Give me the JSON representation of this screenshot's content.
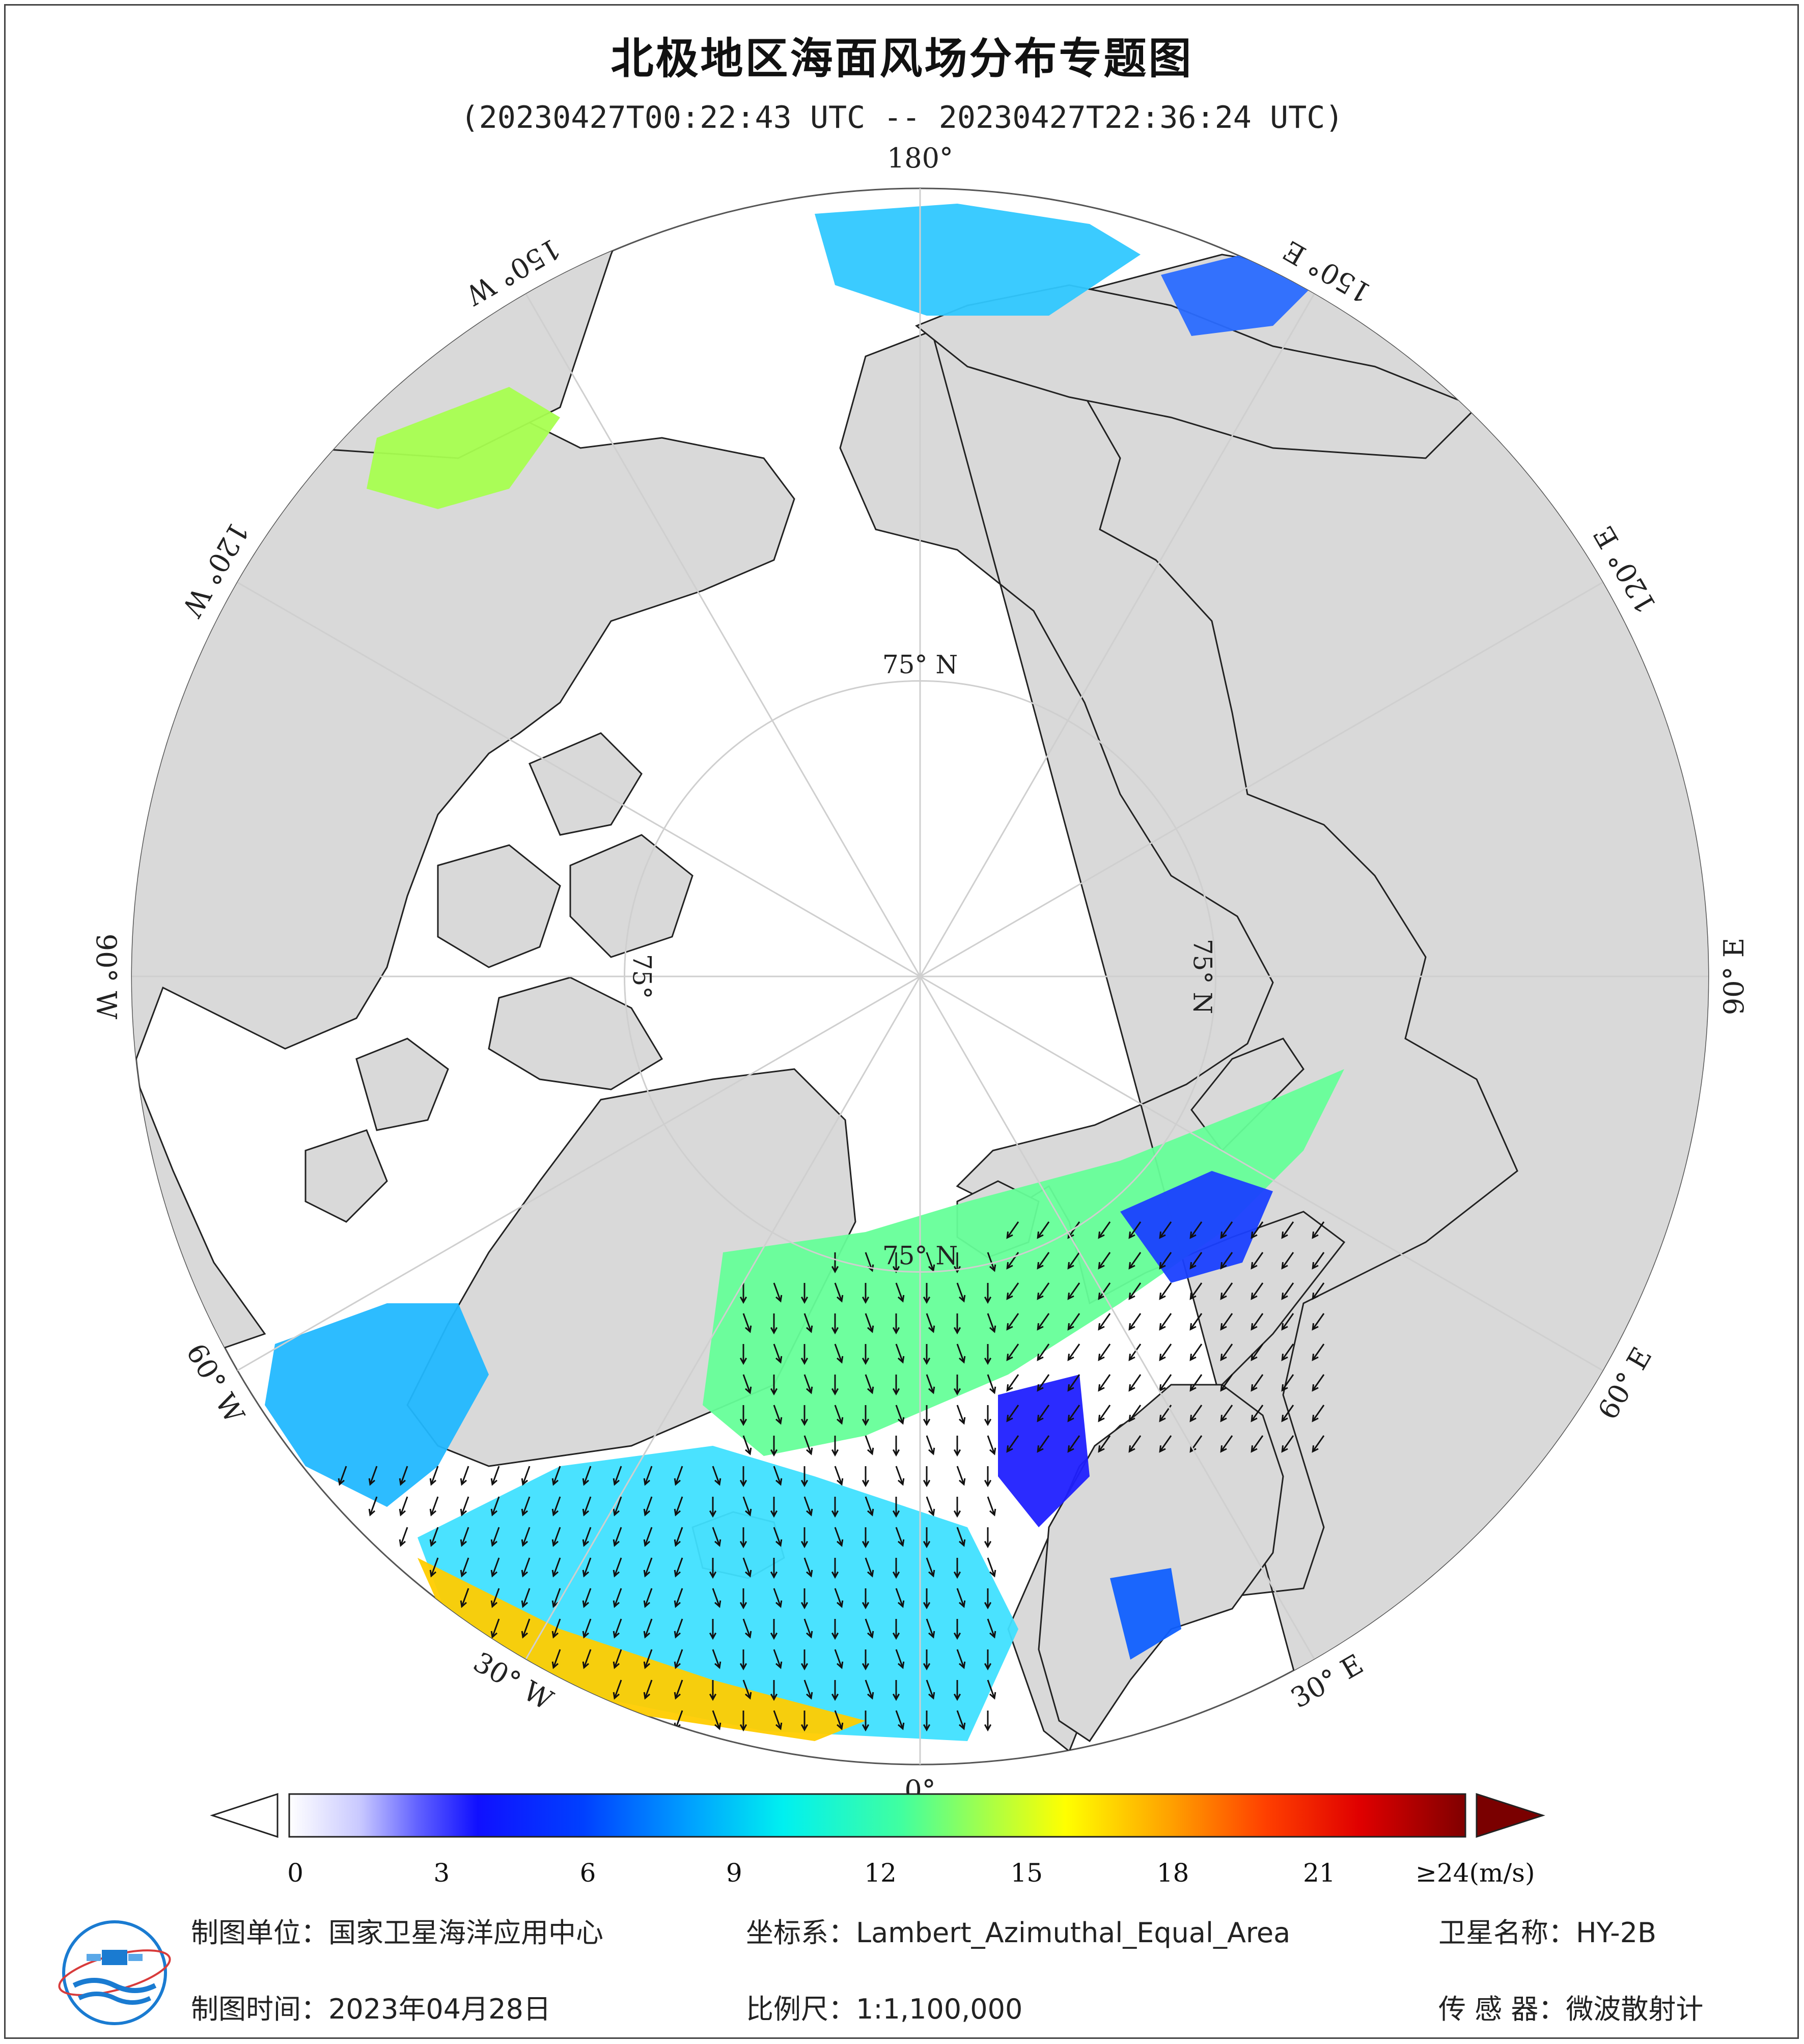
{
  "header": {
    "title": "北极地区海面风场分布专题图",
    "time_range": "(20230427T00:22:43 UTC -- 20230427T22:36:24 UTC)"
  },
  "map": {
    "projection_center": "North Pole",
    "longitude_labels": [
      {
        "lon": 180,
        "text": "180°"
      },
      {
        "lon": -150,
        "text": "150° W"
      },
      {
        "lon": -120,
        "text": "120° W"
      },
      {
        "lon": -90,
        "text": "90° W"
      },
      {
        "lon": -60,
        "text": "60° W"
      },
      {
        "lon": -30,
        "text": "30° W"
      },
      {
        "lon": 0,
        "text": "0°"
      },
      {
        "lon": 30,
        "text": "30° E"
      },
      {
        "lon": 60,
        "text": "60° E"
      },
      {
        "lon": 90,
        "text": "90° E"
      },
      {
        "lon": 120,
        "text": "120° E"
      },
      {
        "lon": 150,
        "text": "150° E"
      }
    ],
    "latitude_labels": [
      {
        "lat": 75,
        "lon": 180,
        "text": "75° N"
      },
      {
        "lat": 75,
        "lon": 90,
        "text": "75° N"
      },
      {
        "lat": 75,
        "lon": 0,
        "text": "75° N"
      },
      {
        "lat": 75,
        "lon": -90,
        "text": "75°"
      }
    ],
    "colors": {
      "ocean_ice": "#ffffff",
      "land": "#d9d9d9",
      "coast": "#222222",
      "grid": "#cfcfcf",
      "arrow": "#111111"
    }
  },
  "colorbar": {
    "tick_labels": [
      "0",
      "3",
      "6",
      "9",
      "12",
      "15",
      "18",
      "21"
    ],
    "tick_values": [
      0,
      3,
      6,
      9,
      12,
      15,
      18,
      21
    ],
    "max_label": "≥24(m/s)",
    "min": 0,
    "max": 24,
    "colors": [
      "#ffffff",
      "#d7d7ff",
      "#b0b0ff",
      "#8080ff",
      "#5050ff",
      "#0000ff",
      "#0060ff",
      "#00b0ff",
      "#00f0f0",
      "#40ffb0",
      "#b0ff40",
      "#ffff00",
      "#ffb000",
      "#ff6000",
      "#ff0000",
      "#c00000",
      "#800000"
    ]
  },
  "footer": {
    "unit_label": "制图单位：国家卫星海洋应用中心",
    "crs_label": "坐标系：Lambert_Azimuthal_Equal_Area",
    "satellite_label": "卫星名称：HY-2B",
    "date_label": "制图时间：2023年04月28日",
    "scale_label": "比例尺：1:1,100,000",
    "sensor_label": "传 感 器：微波散射计"
  }
}
